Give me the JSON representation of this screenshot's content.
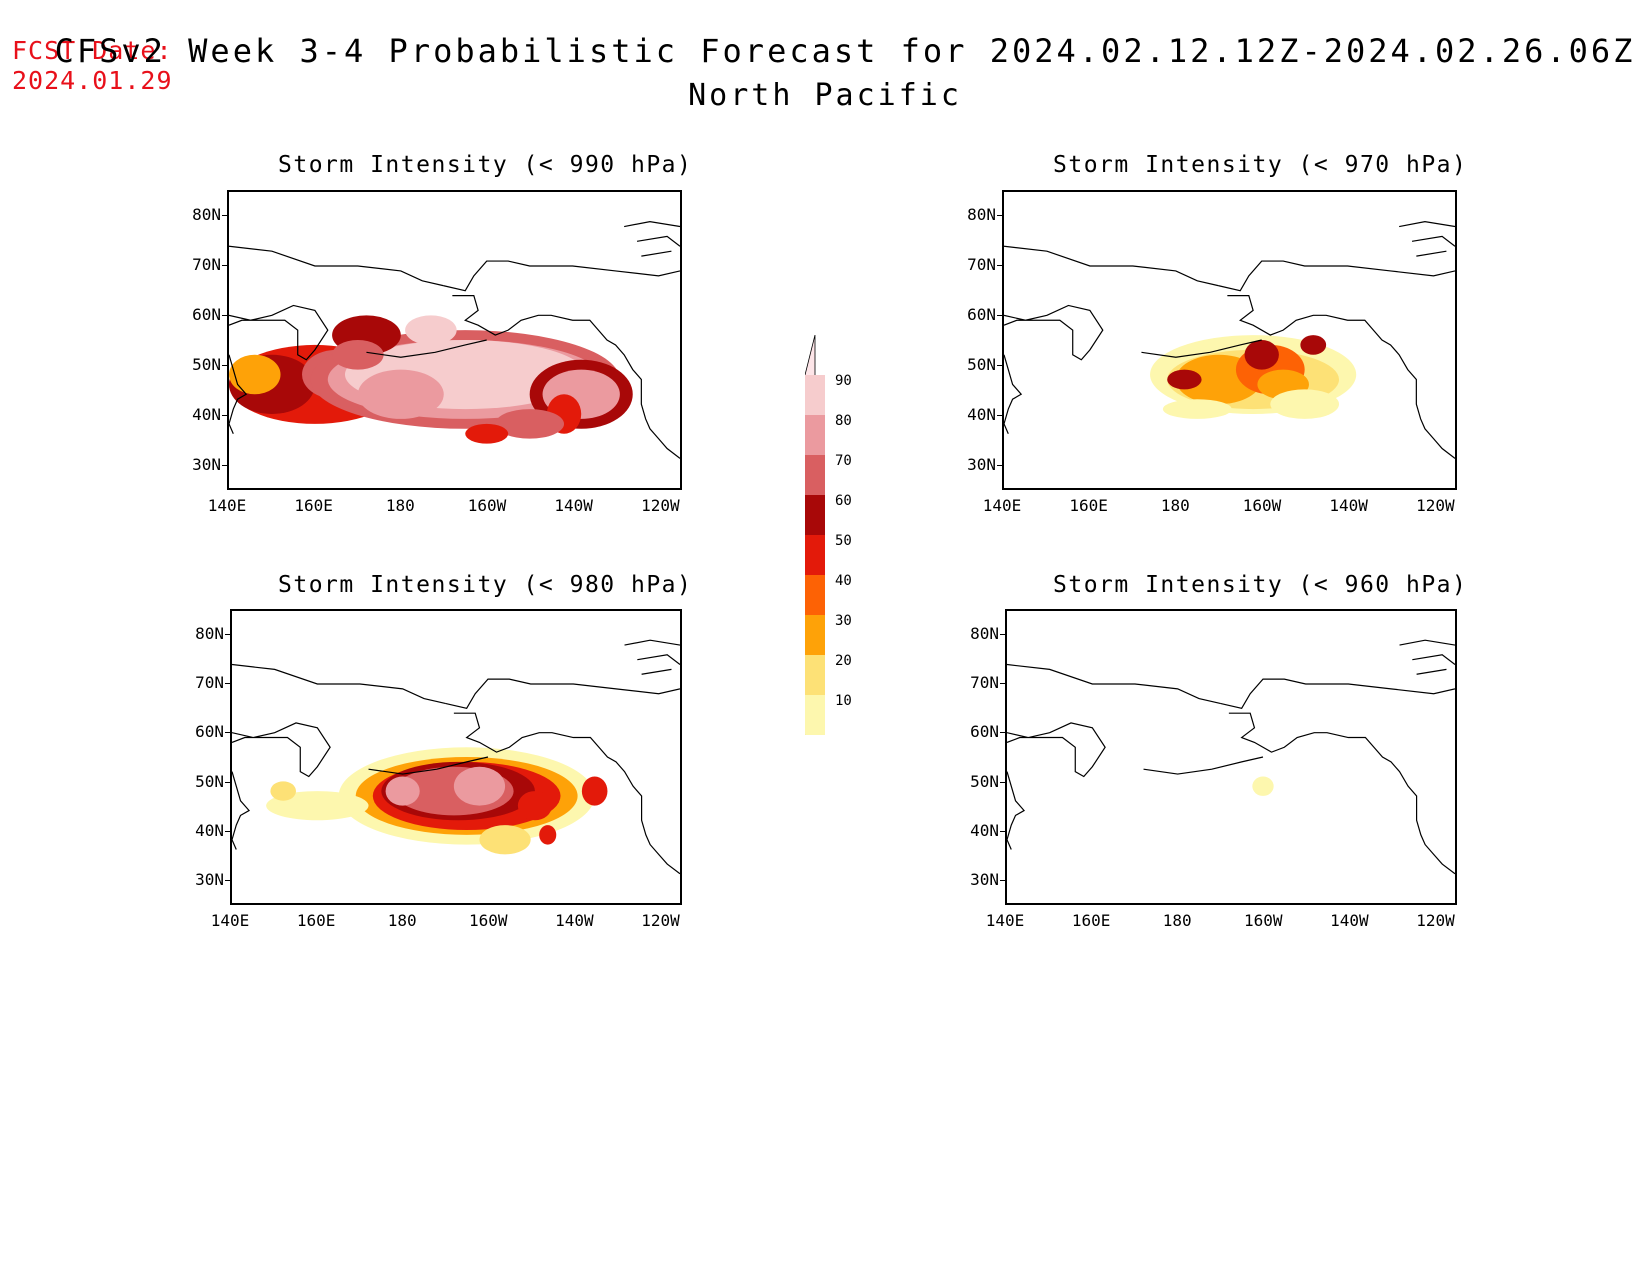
{
  "header": {
    "fcst_label": "FCST Date:",
    "fcst_date": "2024.01.29",
    "title": "CFSv2 Week 3-4 Probabilistic Forecast for 2024.02.12.12Z-2024.02.26.06Z",
    "subtitle": "North Pacific"
  },
  "axes": {
    "y_ticks": [
      "80N",
      "70N",
      "60N",
      "50N",
      "40N",
      "30N"
    ],
    "x_ticks": [
      "140E",
      "160E",
      "180",
      "160W",
      "140W",
      "120W"
    ]
  },
  "panels": [
    {
      "id": "p990",
      "title": "Storm Intensity (< 990 hPa)",
      "coverage": "very high"
    },
    {
      "id": "p970",
      "title": "Storm Intensity (< 970 hPa)",
      "coverage": "moderate"
    },
    {
      "id": "p980",
      "title": "Storm Intensity (< 980 hPa)",
      "coverage": "high"
    },
    {
      "id": "p960",
      "title": "Storm Intensity (< 960 hPa)",
      "coverage": "minimal"
    }
  ],
  "colorbar": {
    "levels": [
      "90",
      "80",
      "70",
      "60",
      "50",
      "40",
      "30",
      "20",
      "10"
    ],
    "colors": [
      "#f6cccd",
      "#eb9a9f",
      "#d95f61",
      "#a80808",
      "#e31a0a",
      "#fd6205",
      "#fea208",
      "#fde176",
      "#fdf7ae"
    ]
  }
}
